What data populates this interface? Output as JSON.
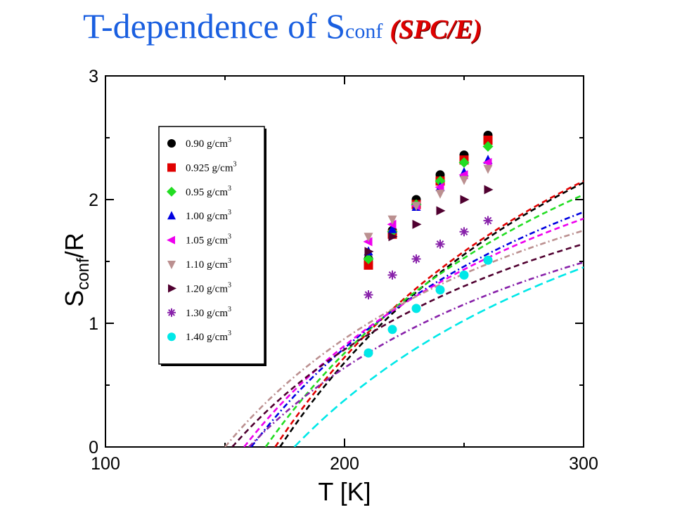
{
  "title": {
    "main": "T-dependence of S",
    "subscript": "conf",
    "tag": "(SPC/E)"
  },
  "chart_data": {
    "type": "line",
    "title": "T-dependence of Sconf (SPC/E)",
    "xlabel": "T [K]",
    "ylabel_main": "S",
    "ylabel_sub": "conf",
    "ylabel_tail": "/R",
    "xlim": [
      100,
      300
    ],
    "ylim": [
      0,
      3
    ],
    "xticks": [
      100,
      200,
      300
    ],
    "yticks": [
      0,
      1,
      2,
      3
    ],
    "legend_position": "upper-left",
    "grid": false,
    "series": [
      {
        "name": "0.90 g/cm",
        "sup": "3",
        "color": "#000000",
        "marker": "circle",
        "dash": "8,5",
        "T0": 173,
        "Sinf": 5.05,
        "tmax": 300,
        "x": [
          210,
          220,
          230,
          240,
          250,
          260
        ],
        "y": [
          1.52,
          1.75,
          2.0,
          2.2,
          2.36,
          2.52
        ]
      },
      {
        "name": "0.925 g/cm",
        "sup": "3",
        "color": "#e00000",
        "marker": "square",
        "dash": "8,5",
        "T0": 171,
        "Sinf": 5.0,
        "tmax": 300,
        "x": [
          210,
          220,
          230,
          240,
          250,
          260
        ],
        "y": [
          1.47,
          1.72,
          1.96,
          2.15,
          2.32,
          2.48
        ]
      },
      {
        "name": "0.95 g/cm",
        "sup": "3",
        "color": "#22dd22",
        "marker": "diamond",
        "dash": "8,5",
        "T0": 167,
        "Sinf": 4.6,
        "tmax": 300,
        "x": [
          210,
          220,
          230,
          240,
          250,
          260
        ],
        "y": [
          1.52,
          1.74,
          1.96,
          2.15,
          2.3,
          2.43
        ]
      },
      {
        "name": "1.00 g/cm",
        "sup": "3",
        "color": "#0000e0",
        "marker": "triangle-up",
        "dash": "8,4,2,4",
        "T0": 161,
        "Sinf": 4.1,
        "tmax": 300,
        "x": [
          210,
          220,
          230,
          240,
          250,
          260
        ],
        "y": [
          1.58,
          1.76,
          1.94,
          2.1,
          2.22,
          2.32
        ]
      },
      {
        "name": "1.05 g/cm",
        "sup": "3",
        "color": "#ee00ee",
        "marker": "triangle-left",
        "dash": "8,5",
        "T0": 158,
        "Sinf": 3.9,
        "tmax": 300,
        "x": [
          210,
          220,
          230,
          240,
          250,
          260
        ],
        "y": [
          1.66,
          1.8,
          1.95,
          2.1,
          2.2,
          2.3
        ]
      },
      {
        "name": "1.10 g/cm",
        "sup": "3",
        "color": "#bb9090",
        "marker": "triangle-down",
        "dash": "8,4,2,4",
        "T0": 150,
        "Sinf": 3.5,
        "tmax": 300,
        "x": [
          210,
          220,
          230,
          240,
          250,
          260
        ],
        "y": [
          1.7,
          1.84,
          1.95,
          2.05,
          2.16,
          2.25
        ]
      },
      {
        "name": "1.20 g/cm",
        "sup": "3",
        "color": "#500030",
        "marker": "triangle-right",
        "dash": "8,5",
        "T0": 153,
        "Sinf": 3.35,
        "tmax": 300,
        "x": [
          210,
          220,
          230,
          240,
          250,
          260
        ],
        "y": [
          1.58,
          1.7,
          1.8,
          1.91,
          2.0,
          2.08
        ]
      },
      {
        "name": "1.30 g/cm",
        "sup": "3",
        "color": "#8822aa",
        "marker": "asterisk",
        "dash": "8,4,2,4",
        "T0": 160,
        "Sinf": 3.2,
        "tmax": 300,
        "x": [
          210,
          220,
          230,
          240,
          250,
          260
        ],
        "y": [
          1.23,
          1.39,
          1.52,
          1.64,
          1.74,
          1.83
        ]
      },
      {
        "name": "1.40 g/cm",
        "sup": "3",
        "color": "#00e8e8",
        "marker": "circle",
        "dash": "12,6",
        "T0": 179,
        "Sinf": 3.6,
        "tmax": 300,
        "x": [
          210,
          220,
          230,
          240,
          250,
          260
        ],
        "y": [
          0.76,
          0.95,
          1.12,
          1.27,
          1.39,
          1.51
        ]
      }
    ]
  }
}
